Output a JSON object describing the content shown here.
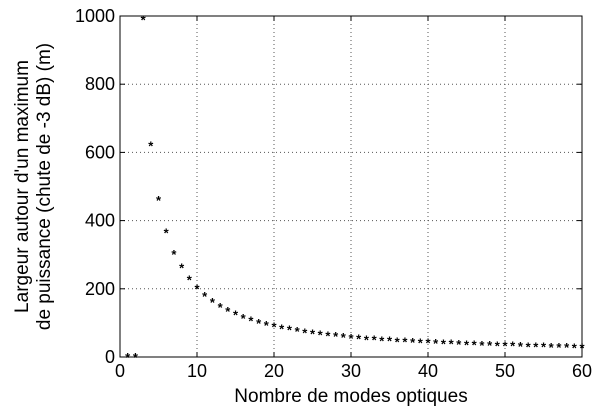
{
  "chart_data": {
    "type": "scatter",
    "title": "",
    "xlabel": "Nombre de modes optiques",
    "ylabel_lines": [
      "Largeur autour d'un maximum",
      "de puissance (chute de -3 dB) (m)"
    ],
    "xlim": [
      0,
      60
    ],
    "ylim": [
      0,
      1000
    ],
    "xticks": [
      0,
      10,
      20,
      30,
      40,
      50,
      60
    ],
    "yticks": [
      0,
      200,
      400,
      600,
      800,
      1000
    ],
    "grid": true,
    "marker": "*",
    "series": [
      {
        "x": [
          1,
          2,
          3,
          4,
          5,
          6,
          7,
          8,
          9,
          10,
          11,
          12,
          13,
          14,
          15,
          16,
          17,
          18,
          19,
          20,
          21,
          22,
          23,
          24,
          25,
          26,
          27,
          28,
          29,
          30,
          31,
          32,
          33,
          34,
          35,
          36,
          37,
          38,
          39,
          40,
          41,
          42,
          43,
          44,
          45,
          46,
          47,
          48,
          49,
          50,
          51,
          52,
          53,
          54,
          55,
          56,
          57,
          58,
          59,
          60
        ],
        "y": [
          0,
          0,
          990,
          620,
          460,
          365,
          302,
          262,
          228,
          201,
          179,
          162,
          147,
          135,
          124,
          115,
          107,
          100,
          94,
          89,
          84,
          80,
          76,
          72,
          69,
          66,
          63,
          61,
          58,
          56,
          54,
          52,
          51,
          49,
          48,
          46,
          45,
          44,
          43,
          42,
          41,
          40,
          39,
          38,
          37,
          36,
          35.5,
          35,
          34,
          33.5,
          33,
          32,
          31.5,
          31,
          30.5,
          30,
          29.5,
          29,
          28.5,
          28
        ]
      }
    ]
  }
}
